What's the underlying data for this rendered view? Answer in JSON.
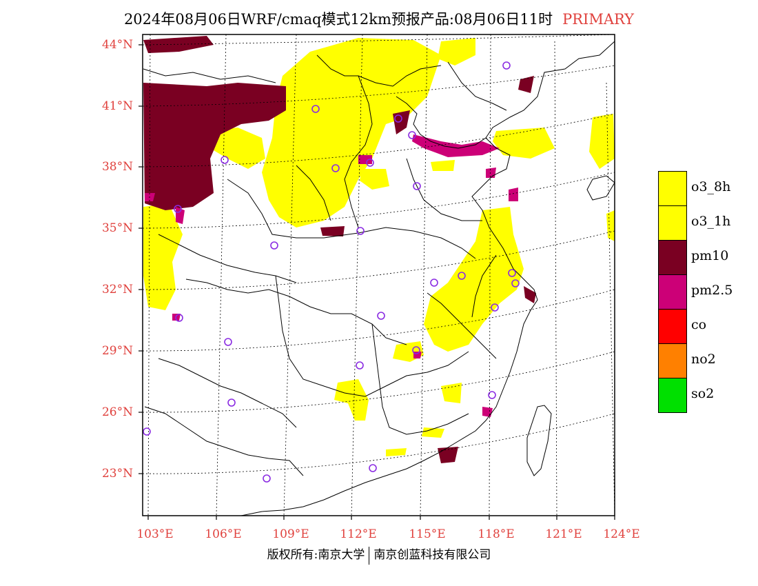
{
  "title": {
    "text": "2024年08月06日WRF/cmaq模式12km预报产品:08月06日11时",
    "tag": "PRIMARY"
  },
  "axes": {
    "lat_labels": [
      "44°N",
      "41°N",
      "38°N",
      "35°N",
      "32°N",
      "29°N",
      "26°N",
      "23°N"
    ],
    "lon_labels": [
      "103°E",
      "106°E",
      "109°E",
      "112°E",
      "115°E",
      "118°E",
      "121°E",
      "124°E"
    ]
  },
  "legend": [
    {
      "label": "o3_8h",
      "color": "#ffff00"
    },
    {
      "label": "o3_1h",
      "color": "#ffff00"
    },
    {
      "label": "pm10",
      "color": "#7a0022"
    },
    {
      "label": "pm2.5",
      "color": "#cc0077"
    },
    {
      "label": "co",
      "color": "#ff0000"
    },
    {
      "label": "no2",
      "color": "#ff8000"
    },
    {
      "label": "so2",
      "color": "#00e000"
    }
  ],
  "copyright": {
    "left": "版权所有:南京大学",
    "right": "南京创蓝科技有限公司"
  },
  "colors": {
    "label_red": "#e0413d",
    "station_marker": "#8a2be2"
  }
}
